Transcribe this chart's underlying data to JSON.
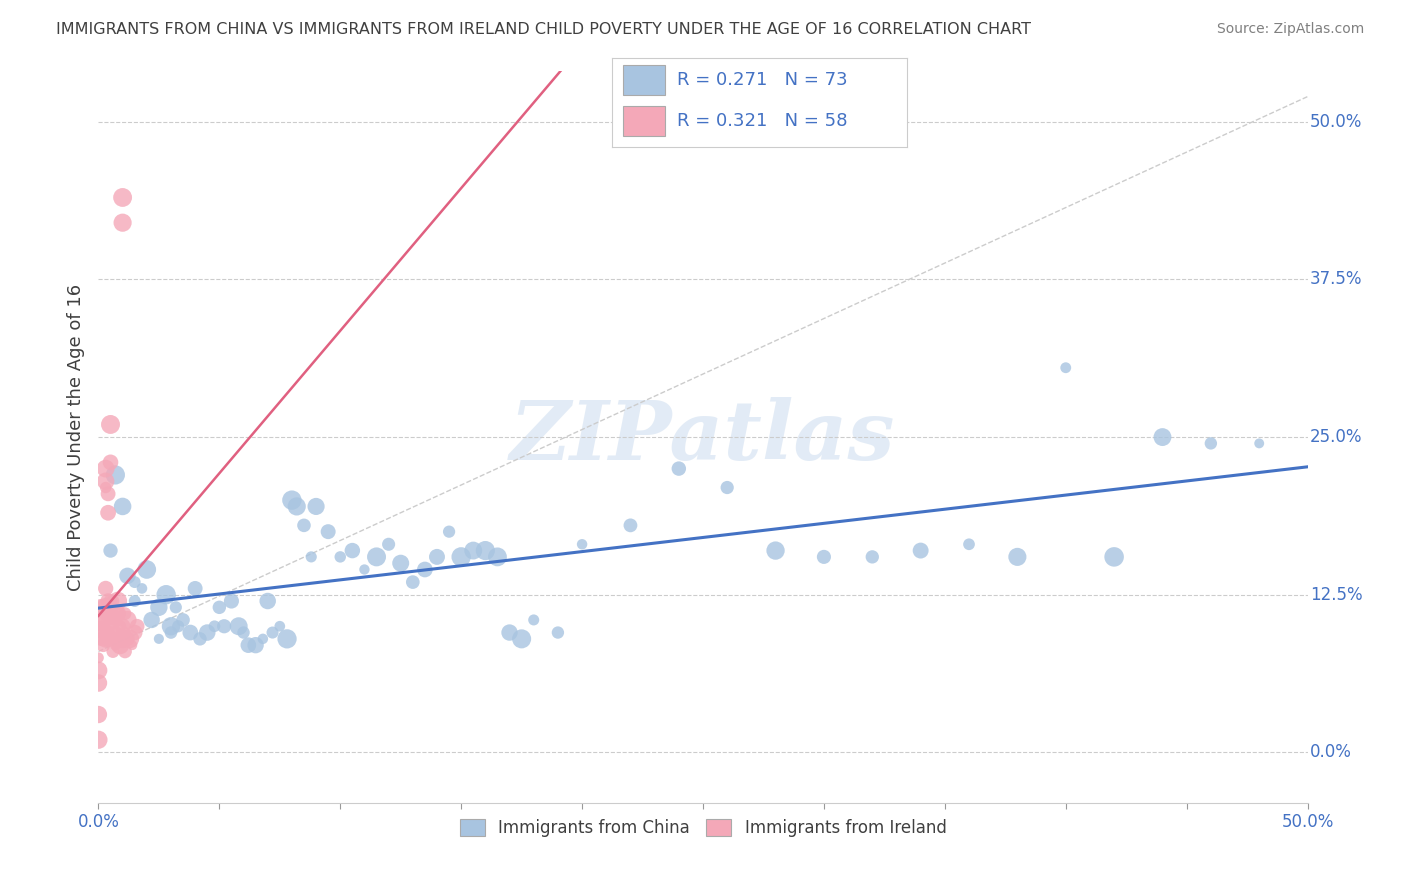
{
  "title": "IMMIGRANTS FROM CHINA VS IMMIGRANTS FROM IRELAND CHILD POVERTY UNDER THE AGE OF 16 CORRELATION CHART",
  "source": "Source: ZipAtlas.com",
  "ylabel": "Child Poverty Under the Age of 16",
  "ytick_values": [
    0.0,
    0.125,
    0.25,
    0.375,
    0.5
  ],
  "ytick_labels": [
    "0.0%",
    "12.5%",
    "25.0%",
    "37.5%",
    "50.0%"
  ],
  "xlim": [
    0.0,
    0.5
  ],
  "ylim": [
    -0.04,
    0.54
  ],
  "china_R": 0.271,
  "china_N": 73,
  "ireland_R": 0.321,
  "ireland_N": 58,
  "china_color": "#a8c4e0",
  "ireland_color": "#f4a8b8",
  "china_line_color": "#4472c4",
  "ireland_line_color": "#e06080",
  "legend_label_china": "Immigrants from China",
  "legend_label_ireland": "Immigrants from Ireland",
  "watermark": "ZIPatlas",
  "background_color": "#ffffff",
  "grid_color": "#cccccc",
  "title_color": "#404040",
  "source_color": "#808080",
  "legend_text_color": "#4472c4",
  "diag_line_color": "#cccccc",
  "china_scatter": [
    [
      0.005,
      0.16
    ],
    [
      0.007,
      0.22
    ],
    [
      0.01,
      0.195
    ],
    [
      0.012,
      0.14
    ],
    [
      0.015,
      0.135
    ],
    [
      0.015,
      0.12
    ],
    [
      0.018,
      0.13
    ],
    [
      0.02,
      0.145
    ],
    [
      0.022,
      0.105
    ],
    [
      0.025,
      0.115
    ],
    [
      0.025,
      0.09
    ],
    [
      0.028,
      0.125
    ],
    [
      0.03,
      0.1
    ],
    [
      0.03,
      0.095
    ],
    [
      0.032,
      0.115
    ],
    [
      0.033,
      0.1
    ],
    [
      0.035,
      0.105
    ],
    [
      0.038,
      0.095
    ],
    [
      0.04,
      0.13
    ],
    [
      0.042,
      0.09
    ],
    [
      0.045,
      0.095
    ],
    [
      0.048,
      0.1
    ],
    [
      0.05,
      0.115
    ],
    [
      0.052,
      0.1
    ],
    [
      0.055,
      0.12
    ],
    [
      0.058,
      0.1
    ],
    [
      0.06,
      0.095
    ],
    [
      0.062,
      0.085
    ],
    [
      0.065,
      0.085
    ],
    [
      0.068,
      0.09
    ],
    [
      0.07,
      0.12
    ],
    [
      0.072,
      0.095
    ],
    [
      0.075,
      0.1
    ],
    [
      0.078,
      0.09
    ],
    [
      0.08,
      0.2
    ],
    [
      0.082,
      0.195
    ],
    [
      0.085,
      0.18
    ],
    [
      0.088,
      0.155
    ],
    [
      0.09,
      0.195
    ],
    [
      0.095,
      0.175
    ],
    [
      0.1,
      0.155
    ],
    [
      0.105,
      0.16
    ],
    [
      0.11,
      0.145
    ],
    [
      0.115,
      0.155
    ],
    [
      0.12,
      0.165
    ],
    [
      0.125,
      0.15
    ],
    [
      0.13,
      0.135
    ],
    [
      0.135,
      0.145
    ],
    [
      0.14,
      0.155
    ],
    [
      0.145,
      0.175
    ],
    [
      0.15,
      0.155
    ],
    [
      0.155,
      0.16
    ],
    [
      0.16,
      0.16
    ],
    [
      0.165,
      0.155
    ],
    [
      0.17,
      0.095
    ],
    [
      0.175,
      0.09
    ],
    [
      0.18,
      0.105
    ],
    [
      0.19,
      0.095
    ],
    [
      0.2,
      0.165
    ],
    [
      0.22,
      0.18
    ],
    [
      0.24,
      0.225
    ],
    [
      0.26,
      0.21
    ],
    [
      0.28,
      0.16
    ],
    [
      0.3,
      0.155
    ],
    [
      0.32,
      0.155
    ],
    [
      0.34,
      0.16
    ],
    [
      0.36,
      0.165
    ],
    [
      0.38,
      0.155
    ],
    [
      0.4,
      0.305
    ],
    [
      0.42,
      0.155
    ],
    [
      0.44,
      0.25
    ],
    [
      0.46,
      0.245
    ],
    [
      0.48,
      0.245
    ]
  ],
  "ireland_scatter": [
    [
      0.0,
      0.01
    ],
    [
      0.0,
      0.03
    ],
    [
      0.0,
      0.055
    ],
    [
      0.0,
      0.065
    ],
    [
      0.0,
      0.075
    ],
    [
      0.001,
      0.09
    ],
    [
      0.001,
      0.1
    ],
    [
      0.001,
      0.105
    ],
    [
      0.001,
      0.115
    ],
    [
      0.002,
      0.085
    ],
    [
      0.002,
      0.1
    ],
    [
      0.002,
      0.105
    ],
    [
      0.002,
      0.095
    ],
    [
      0.003,
      0.09
    ],
    [
      0.003,
      0.095
    ],
    [
      0.003,
      0.115
    ],
    [
      0.003,
      0.13
    ],
    [
      0.003,
      0.21
    ],
    [
      0.003,
      0.215
    ],
    [
      0.003,
      0.225
    ],
    [
      0.004,
      0.09
    ],
    [
      0.004,
      0.11
    ],
    [
      0.004,
      0.12
    ],
    [
      0.004,
      0.19
    ],
    [
      0.004,
      0.205
    ],
    [
      0.005,
      0.095
    ],
    [
      0.005,
      0.1
    ],
    [
      0.005,
      0.105
    ],
    [
      0.005,
      0.11
    ],
    [
      0.005,
      0.12
    ],
    [
      0.005,
      0.23
    ],
    [
      0.005,
      0.26
    ],
    [
      0.006,
      0.08
    ],
    [
      0.006,
      0.09
    ],
    [
      0.006,
      0.105
    ],
    [
      0.006,
      0.12
    ],
    [
      0.007,
      0.085
    ],
    [
      0.007,
      0.095
    ],
    [
      0.007,
      0.105
    ],
    [
      0.007,
      0.11
    ],
    [
      0.008,
      0.09
    ],
    [
      0.008,
      0.11
    ],
    [
      0.008,
      0.12
    ],
    [
      0.009,
      0.085
    ],
    [
      0.009,
      0.1
    ],
    [
      0.01,
      0.09
    ],
    [
      0.01,
      0.1
    ],
    [
      0.01,
      0.42
    ],
    [
      0.01,
      0.44
    ],
    [
      0.011,
      0.08
    ],
    [
      0.011,
      0.095
    ],
    [
      0.011,
      0.11
    ],
    [
      0.012,
      0.09
    ],
    [
      0.012,
      0.105
    ],
    [
      0.013,
      0.09
    ],
    [
      0.014,
      0.085
    ],
    [
      0.015,
      0.095
    ],
    [
      0.016,
      0.1
    ]
  ]
}
